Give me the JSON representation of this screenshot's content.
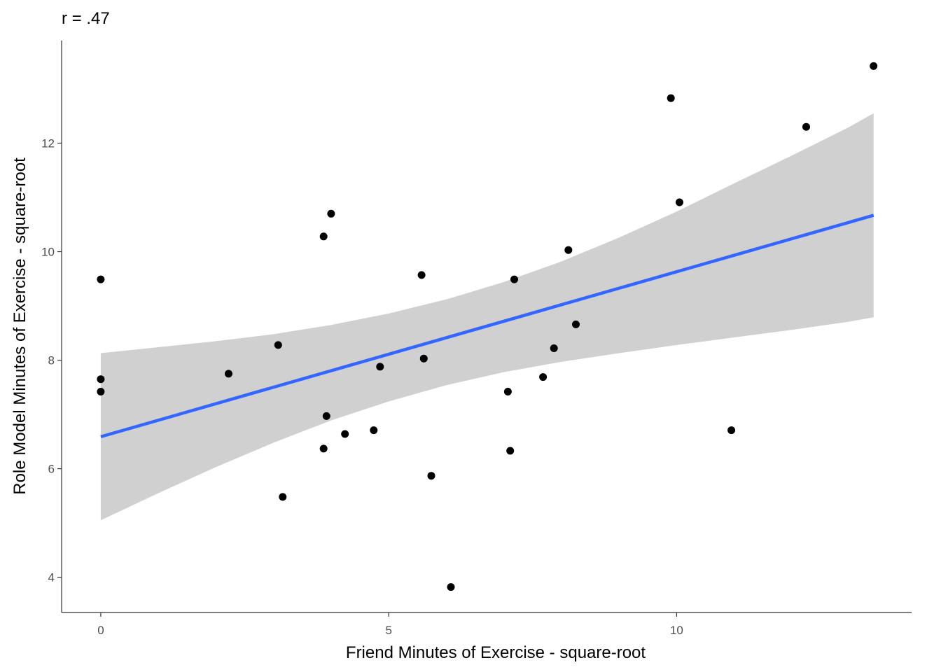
{
  "chart_data": {
    "type": "scatter",
    "title": "r = .47",
    "xlabel": "Friend Minutes of Exercise - square-root",
    "ylabel": "Role Model Minutes of Exercise - square-root",
    "xlim": [
      -0.68,
      14.08
    ],
    "ylim": [
      3.35,
      13.89
    ],
    "x_ticks": [
      0,
      5,
      10
    ],
    "y_ticks": [
      4,
      6,
      8,
      10,
      12
    ],
    "grid": false,
    "legend": "none",
    "points": [
      {
        "x": 0.0,
        "y": 9.49
      },
      {
        "x": 0.0,
        "y": 7.65
      },
      {
        "x": 0.0,
        "y": 7.42
      },
      {
        "x": 2.22,
        "y": 7.75
      },
      {
        "x": 3.08,
        "y": 8.28
      },
      {
        "x": 3.16,
        "y": 5.48
      },
      {
        "x": 3.87,
        "y": 10.28
      },
      {
        "x": 3.87,
        "y": 6.37
      },
      {
        "x": 3.92,
        "y": 6.97
      },
      {
        "x": 4.0,
        "y": 10.7
      },
      {
        "x": 4.24,
        "y": 6.64
      },
      {
        "x": 4.74,
        "y": 6.71
      },
      {
        "x": 4.85,
        "y": 7.88
      },
      {
        "x": 5.57,
        "y": 9.57
      },
      {
        "x": 5.61,
        "y": 8.03
      },
      {
        "x": 5.74,
        "y": 5.87
      },
      {
        "x": 6.08,
        "y": 3.82
      },
      {
        "x": 7.07,
        "y": 7.42
      },
      {
        "x": 7.11,
        "y": 6.33
      },
      {
        "x": 7.18,
        "y": 9.49
      },
      {
        "x": 7.68,
        "y": 7.69
      },
      {
        "x": 7.87,
        "y": 8.22
      },
      {
        "x": 8.12,
        "y": 10.03
      },
      {
        "x": 8.25,
        "y": 8.66
      },
      {
        "x": 9.9,
        "y": 12.83
      },
      {
        "x": 10.05,
        "y": 10.91
      },
      {
        "x": 10.95,
        "y": 6.71
      },
      {
        "x": 12.25,
        "y": 12.3
      },
      {
        "x": 13.42,
        "y": 13.42
      }
    ],
    "fit_line": {
      "x": [
        0.0,
        13.42
      ],
      "y": [
        6.59,
        10.67
      ]
    },
    "confidence_band": {
      "x": [
        0.0,
        1.0,
        2.0,
        3.0,
        4.0,
        5.0,
        6.0,
        7.0,
        8.0,
        9.0,
        10.0,
        11.0,
        12.0,
        13.0,
        13.42
      ],
      "lower": [
        5.05,
        5.55,
        6.03,
        6.48,
        6.89,
        7.24,
        7.54,
        7.78,
        7.97,
        8.13,
        8.28,
        8.42,
        8.56,
        8.71,
        8.79
      ],
      "upper": [
        8.13,
        8.24,
        8.35,
        8.48,
        8.65,
        8.86,
        9.12,
        9.44,
        9.82,
        10.26,
        10.74,
        11.26,
        11.77,
        12.3,
        12.55
      ]
    },
    "colors": {
      "points": "#000000",
      "line": "#3366ff",
      "band": "#d0d0d0",
      "axis": "#333333"
    }
  }
}
